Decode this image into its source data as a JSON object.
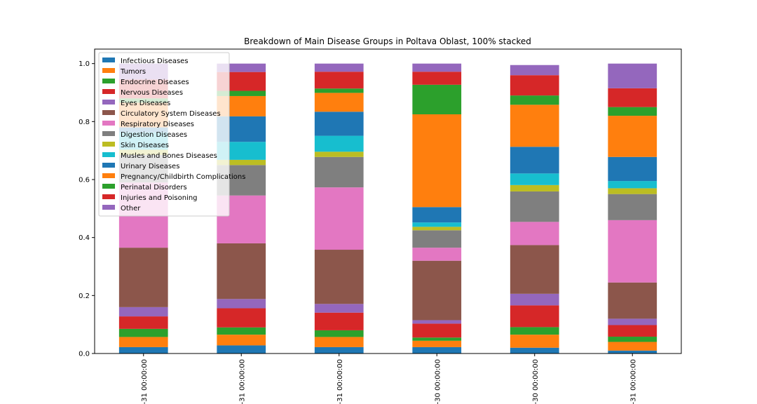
{
  "chart_data": {
    "type": "bar",
    "stacked": true,
    "title": "Breakdown of Main Disease Groups in Poltava Oblast, 100% stacked",
    "xlabel": "",
    "ylabel": "",
    "ylim": [
      0,
      1.05
    ],
    "yticks": [
      "0.0",
      "0.2",
      "0.4",
      "0.6",
      "0.8",
      "1.0"
    ],
    "categories": [
      "-31 00:00:00",
      "-31 00:00:00",
      "-31 00:00:00",
      "-30 00:00:00",
      "-30 00:00:00",
      "-31 00:00:00"
    ],
    "legend_position": "upper-left",
    "grid": false,
    "series": [
      {
        "name": "Infectious Diseases",
        "color": "#1f77b4",
        "values": [
          0.022,
          0.028,
          0.022,
          0.022,
          0.02,
          0.01
        ]
      },
      {
        "name": "Tumors",
        "color": "#ff7f0e",
        "values": [
          0.035,
          0.037,
          0.035,
          0.022,
          0.045,
          0.03
        ]
      },
      {
        "name": "Endocrine Diseases",
        "color": "#2ca02c",
        "values": [
          0.028,
          0.025,
          0.023,
          0.011,
          0.026,
          0.018
        ]
      },
      {
        "name": "Nervous Diseases",
        "color": "#d62728",
        "values": [
          0.043,
          0.066,
          0.061,
          0.048,
          0.075,
          0.04
        ]
      },
      {
        "name": "Eyes Diseases",
        "color": "#9467bd",
        "values": [
          0.032,
          0.032,
          0.03,
          0.012,
          0.04,
          0.022
        ]
      },
      {
        "name": "Circulatory System Diseases",
        "color": "#8c564b",
        "values": [
          0.205,
          0.192,
          0.187,
          0.205,
          0.168,
          0.125
        ]
      },
      {
        "name": "Respiratory Diseases",
        "color": "#e377c2",
        "values": [
          0.225,
          0.165,
          0.215,
          0.045,
          0.08,
          0.215
        ]
      },
      {
        "name": "Digestion Diseases",
        "color": "#7f7f7f",
        "values": [
          0.095,
          0.105,
          0.105,
          0.06,
          0.105,
          0.09
        ]
      },
      {
        "name": "Skin Diseases",
        "color": "#bcbd22",
        "values": [
          0.018,
          0.018,
          0.018,
          0.012,
          0.022,
          0.02
        ]
      },
      {
        "name": "Musles and Bones Diseases",
        "color": "#17becf",
        "values": [
          0.06,
          0.062,
          0.055,
          0.015,
          0.04,
          0.025
        ]
      },
      {
        "name": "Urinary Diseases",
        "color": "#1f77b4",
        "values": [
          0.017,
          0.088,
          0.083,
          0.053,
          0.092,
          0.083
        ]
      },
      {
        "name": "Pregnancy/Childbirth Complications",
        "color": "#ff7f0e",
        "values": [
          0.085,
          0.07,
          0.065,
          0.32,
          0.145,
          0.142
        ]
      },
      {
        "name": "Perinatal Disorders",
        "color": "#2ca02c",
        "values": [
          0.015,
          0.018,
          0.015,
          0.102,
          0.032,
          0.03
        ]
      },
      {
        "name": "Injuries and Poisoning",
        "color": "#d62728",
        "values": [
          0.065,
          0.065,
          0.058,
          0.045,
          0.07,
          0.065
        ]
      },
      {
        "name": "Other",
        "color": "#9467bd",
        "values": [
          0.055,
          0.029,
          0.028,
          0.028,
          0.035,
          0.085
        ]
      }
    ]
  }
}
